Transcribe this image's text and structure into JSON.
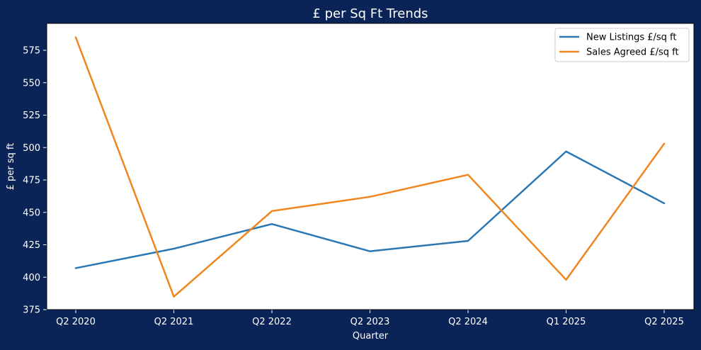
{
  "colors": {
    "background": "#0b2457",
    "plot_background": "#ffffff",
    "text": "#ffffff",
    "new_listings": "#2a77b4",
    "sales_agreed": "#f0861f"
  },
  "chart_data": {
    "type": "line",
    "title": "£ per Sq Ft Trends",
    "xlabel": "Quarter",
    "ylabel": "£ per sq ft",
    "categories": [
      "Q2 2020",
      "Q2 2021",
      "Q2 2022",
      "Q2 2023",
      "Q2 2024",
      "Q1 2025",
      "Q2 2025"
    ],
    "ylim": [
      375,
      595
    ],
    "yticks": [
      375,
      400,
      425,
      450,
      475,
      500,
      525,
      550,
      575
    ],
    "grid": false,
    "legend_position": "top-right",
    "series": [
      {
        "name": "New Listings £/sq ft",
        "color_key": "new_listings",
        "values": [
          407,
          422,
          441,
          420,
          428,
          497,
          457
        ]
      },
      {
        "name": "Sales Agreed £/sq ft",
        "color_key": "sales_agreed",
        "values": [
          585,
          385,
          451,
          462,
          479,
          398,
          503
        ]
      }
    ]
  }
}
